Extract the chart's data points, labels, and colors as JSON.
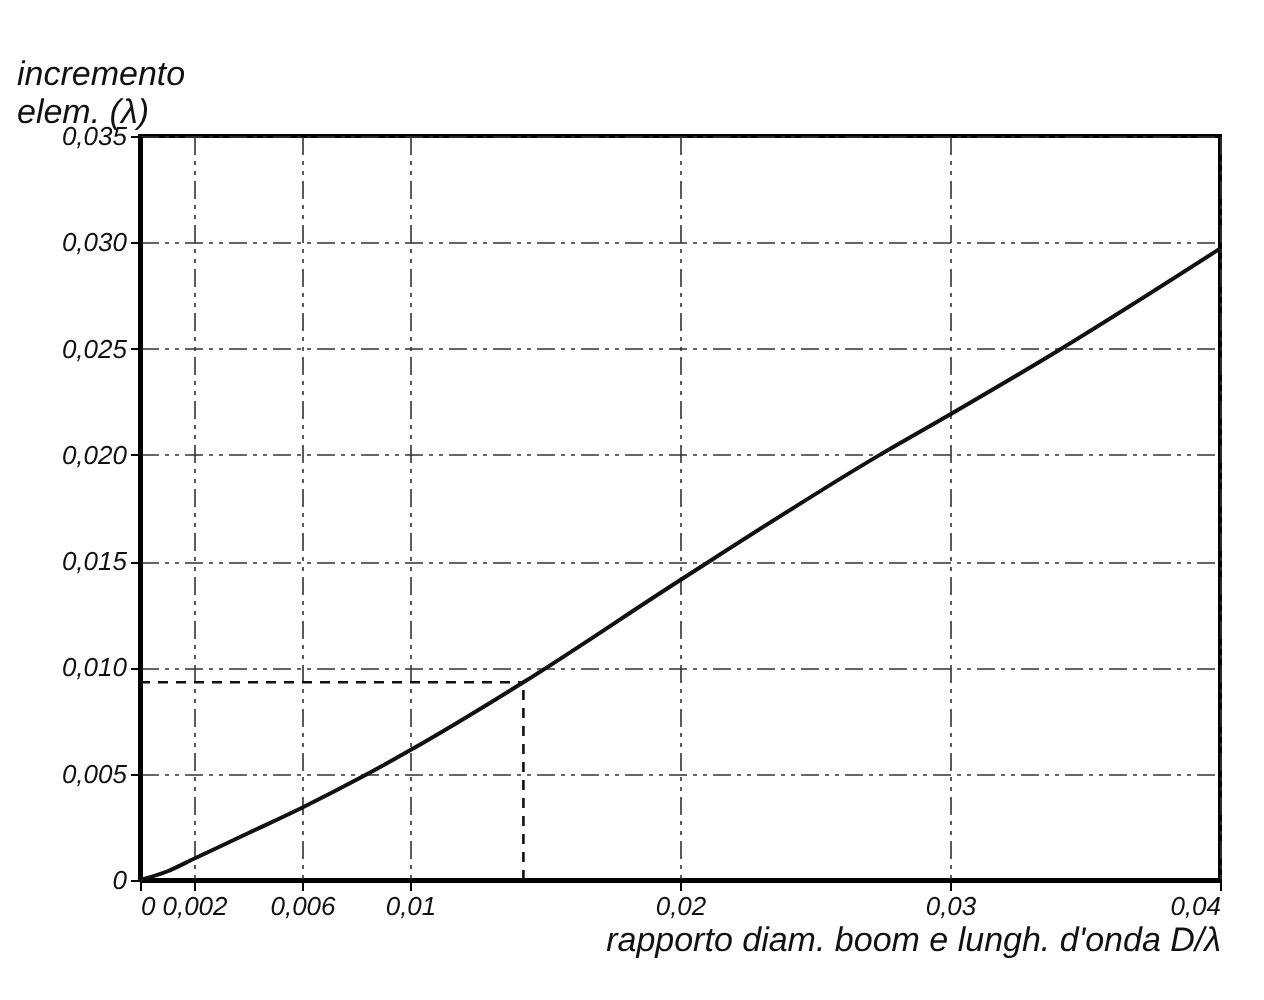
{
  "chart_data": {
    "type": "line",
    "xlabel": "rapporto   diam.   boom   e   lungh.  d'onda      D/λ",
    "ylabel": "incremento\nelem. (λ)",
    "x": [
      0,
      0.001,
      0.002,
      0.004,
      0.006,
      0.008,
      0.01,
      0.0142,
      0.02,
      0.0274,
      0.03,
      0.034,
      0.04
    ],
    "series": [
      {
        "color": "#111111",
        "values": [
          0,
          0.0004,
          0.001,
          0.0022,
          0.0034,
          0.0047,
          0.0061,
          0.0093,
          0.0141,
          0.02,
          0.0219,
          0.0249,
          0.0297
        ]
      }
    ],
    "xlim": [
      0,
      0.04
    ],
    "xticks": [
      {
        "value": 0,
        "label": "0"
      },
      {
        "value": 0.002,
        "label": "0,002"
      },
      {
        "value": 0.006,
        "label": "0,006"
      },
      {
        "value": 0.01,
        "label": "0,01"
      },
      {
        "value": 0.02,
        "label": "0,02"
      },
      {
        "value": 0.03,
        "label": "0,03"
      },
      {
        "value": 0.04,
        "label": "0,04"
      }
    ],
    "ylim": [
      0,
      0.035
    ],
    "yticks": [
      {
        "value": 0,
        "label": "0"
      },
      {
        "value": 0.005,
        "label": "0,005"
      },
      {
        "value": 0.01,
        "label": "0,010"
      },
      {
        "value": 0.015,
        "label": "0,015"
      },
      {
        "value": 0.02,
        "label": "0,020"
      },
      {
        "value": 0.025,
        "label": "0,025"
      },
      {
        "value": 0.03,
        "label": "0,030"
      },
      {
        "value": 0.035,
        "label": "0,035"
      }
    ],
    "ref_lines": [
      {
        "axis": "x",
        "value": 0.0142,
        "line_style": "dashed"
      },
      {
        "axis": "y",
        "value": 0.0093,
        "line_style": "dashed"
      }
    ],
    "grid": true,
    "marker": "none",
    "line_style": "solid"
  }
}
